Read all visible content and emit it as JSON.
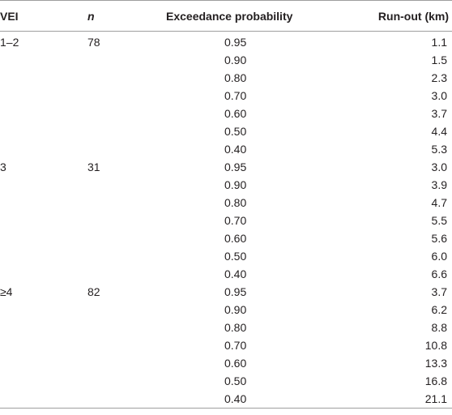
{
  "headers": {
    "vei": "VEI",
    "n": "n",
    "probability": "Exceedance probability",
    "runout": "Run-out (km)"
  },
  "rows": [
    {
      "vei": "1–2",
      "n": "78",
      "p": "0.95",
      "r": "1.1"
    },
    {
      "vei": "",
      "n": "",
      "p": "0.90",
      "r": "1.5"
    },
    {
      "vei": "",
      "n": "",
      "p": "0.80",
      "r": "2.3"
    },
    {
      "vei": "",
      "n": "",
      "p": "0.70",
      "r": "3.0"
    },
    {
      "vei": "",
      "n": "",
      "p": "0.60",
      "r": "3.7"
    },
    {
      "vei": "",
      "n": "",
      "p": "0.50",
      "r": "4.4"
    },
    {
      "vei": "",
      "n": "",
      "p": "0.40",
      "r": "5.3"
    },
    {
      "vei": "3",
      "n": "31",
      "p": "0.95",
      "r": "3.0"
    },
    {
      "vei": "",
      "n": "",
      "p": "0.90",
      "r": "3.9"
    },
    {
      "vei": "",
      "n": "",
      "p": "0.80",
      "r": "4.7"
    },
    {
      "vei": "",
      "n": "",
      "p": "0.70",
      "r": "5.5"
    },
    {
      "vei": "",
      "n": "",
      "p": "0.60",
      "r": "5.6"
    },
    {
      "vei": "",
      "n": "",
      "p": "0.50",
      "r": "6.0"
    },
    {
      "vei": "",
      "n": "",
      "p": "0.40",
      "r": "6.6"
    },
    {
      "vei": "≥4",
      "n": "82",
      "p": "0.95",
      "r": "3.7"
    },
    {
      "vei": "",
      "n": "",
      "p": "0.90",
      "r": "6.2"
    },
    {
      "vei": "",
      "n": "",
      "p": "0.80",
      "r": "8.8"
    },
    {
      "vei": "",
      "n": "",
      "p": "0.70",
      "r": "10.8"
    },
    {
      "vei": "",
      "n": "",
      "p": "0.60",
      "r": "13.3"
    },
    {
      "vei": "",
      "n": "",
      "p": "0.50",
      "r": "16.8"
    },
    {
      "vei": "",
      "n": "",
      "p": "0.40",
      "r": "21.1"
    }
  ]
}
